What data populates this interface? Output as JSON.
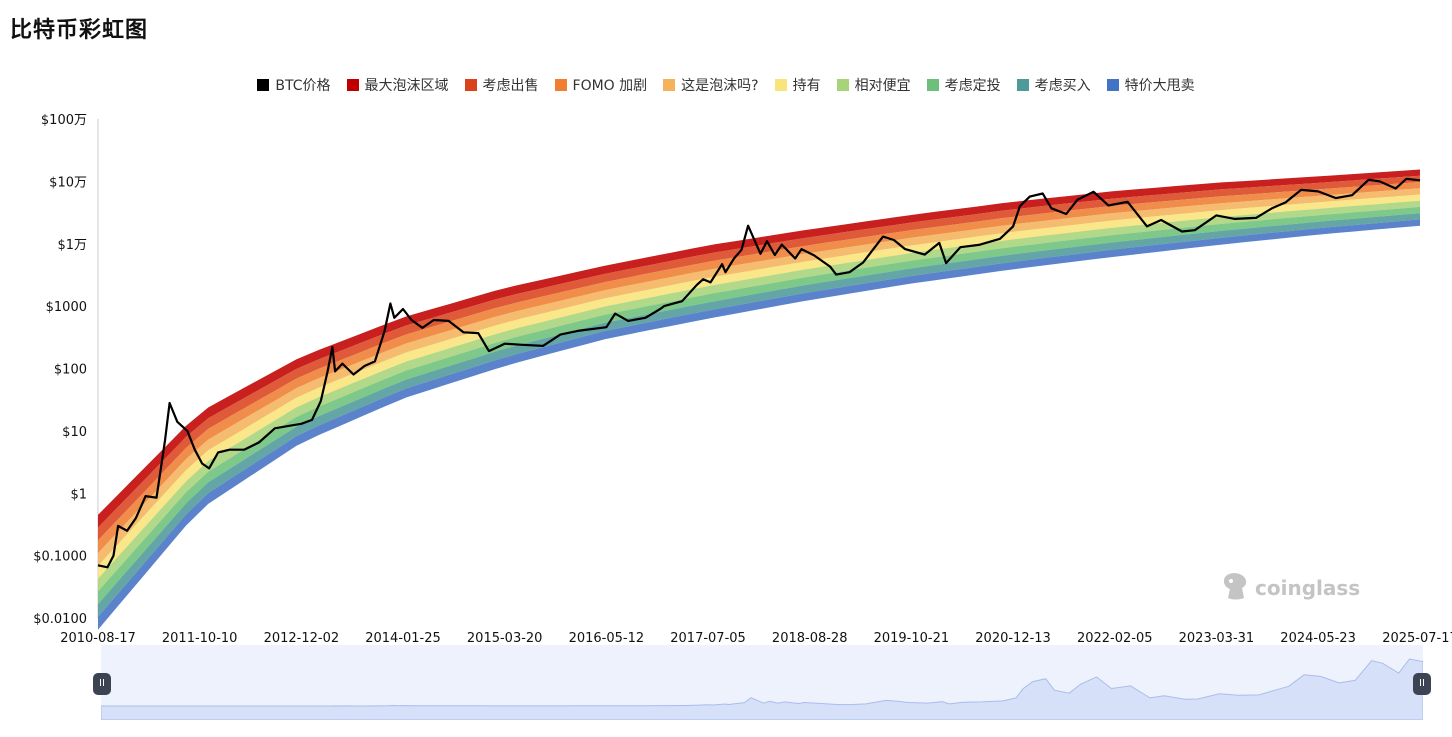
{
  "page": {
    "title": "比特币彩虹图"
  },
  "legend": [
    {
      "label": "BTC价格",
      "color": "#000000"
    },
    {
      "label": "最大泡沫区域",
      "color": "#c00000"
    },
    {
      "label": "考虑出售",
      "color": "#d9431c"
    },
    {
      "label": "FOMO 加剧",
      "color": "#ef7d32"
    },
    {
      "label": "这是泡沫吗?",
      "color": "#f4b25a"
    },
    {
      "label": "持有",
      "color": "#f8e47a"
    },
    {
      "label": "相对便宜",
      "color": "#a7d37a"
    },
    {
      "label": "考虑定投",
      "color": "#6cc07a"
    },
    {
      "label": "考虑买入",
      "color": "#4e9a9a"
    },
    {
      "label": "特价大甩卖",
      "color": "#4472c4"
    }
  ],
  "watermark": {
    "text": "coinglass"
  },
  "chart_data": {
    "type": "line",
    "title": "比特币彩虹图",
    "y_scale": "log",
    "ylim": [
      0.01,
      1000000
    ],
    "xlim": [
      "2010-08-17",
      "2025-07-17"
    ],
    "y_tick_labels": [
      "$100万",
      "$10万",
      "$1万",
      "$1000",
      "$100",
      "$10",
      "$1",
      "$0.1000",
      "$0.0100"
    ],
    "y_tick_values": [
      1000000,
      100000,
      10000,
      1000,
      100,
      10,
      1,
      0.1,
      0.01
    ],
    "x_tick_labels": [
      "2010-08-17",
      "2011-10-10",
      "2012-12-02",
      "2014-01-25",
      "2015-03-20",
      "2016-05-12",
      "2017-07-05",
      "2018-08-28",
      "2019-10-21",
      "2020-12-13",
      "2022-02-05",
      "2023-03-31",
      "2024-05-23",
      "2025-07-17"
    ],
    "band_lines": {
      "dates": [
        "2010-08-17",
        "2011-10-10",
        "2012-12-02",
        "2014-01-25",
        "2015-03-20",
        "2016-05-12",
        "2017-07-05",
        "2018-08-28",
        "2019-10-21",
        "2020-12-13",
        "2022-02-05",
        "2023-03-31",
        "2024-05-23",
        "2025-07-17"
      ],
      "top_values": [
        0.45,
        20,
        155,
        660,
        1950,
        4500,
        9400,
        17000,
        29000,
        47000,
        70000,
        95000,
        120000,
        155000
      ],
      "bottom_values": [
        0.0065,
        0.55,
        6.5,
        33,
        110,
        300,
        630,
        1250,
        2300,
        3900,
        6200,
        9500,
        14000,
        19500
      ]
    },
    "series": [
      {
        "name": "BTC价格",
        "color": "#000000",
        "x": [
          "2010-08-17",
          "2010-09-25",
          "2010-10-20",
          "2010-11-08",
          "2010-12-15",
          "2011-01-20",
          "2011-03-01",
          "2011-04-15",
          "2011-05-20",
          "2011-06-08",
          "2011-07-10",
          "2011-08-20",
          "2011-09-20",
          "2011-10-20",
          "2011-11-18",
          "2011-12-25",
          "2012-02-10",
          "2012-04-10",
          "2012-06-10",
          "2012-08-15",
          "2012-10-10",
          "2012-12-02",
          "2013-01-15",
          "2013-02-20",
          "2013-03-20",
          "2013-04-09",
          "2013-04-20",
          "2013-05-20",
          "2013-07-05",
          "2013-08-20",
          "2013-10-01",
          "2013-11-10",
          "2013-12-04",
          "2013-12-20",
          "2014-01-25",
          "2014-03-01",
          "2014-04-15",
          "2014-06-01",
          "2014-08-01",
          "2014-10-01",
          "2014-12-01",
          "2015-01-14",
          "2015-03-20",
          "2015-06-01",
          "2015-08-25",
          "2015-11-04",
          "2016-01-15",
          "2016-05-12",
          "2016-06-17",
          "2016-08-10",
          "2016-10-20",
          "2016-12-20",
          "2017-01-05",
          "2017-03-20",
          "2017-05-20",
          "2017-06-15",
          "2017-07-15",
          "2017-09-01",
          "2017-09-15",
          "2017-10-20",
          "2017-11-20",
          "2017-12-17",
          "2018-02-06",
          "2018-03-05",
          "2018-04-06",
          "2018-05-05",
          "2018-06-29",
          "2018-07-25",
          "2018-09-15",
          "2018-11-20",
          "2018-12-15",
          "2019-02-08",
          "2019-04-05",
          "2019-06-26",
          "2019-08-10",
          "2019-09-25",
          "2019-12-15",
          "2020-02-13",
          "2020-03-12",
          "2020-05-10",
          "2020-07-25",
          "2020-10-20",
          "2020-12-13",
          "2021-01-10",
          "2021-02-20",
          "2021-04-14",
          "2021-05-20",
          "2021-07-20",
          "2021-09-05",
          "2021-11-10",
          "2022-01-10",
          "2022-03-30",
          "2022-06-18",
          "2022-08-15",
          "2022-11-09",
          "2023-01-01",
          "2023-03-31",
          "2023-06-15",
          "2023-09-10",
          "2023-11-15",
          "2024-01-10",
          "2024-03-14",
          "2024-05-23",
          "2024-08-05",
          "2024-10-10",
          "2024-12-17",
          "2025-02-01",
          "2025-04-08",
          "2025-05-22",
          "2025-07-17"
        ],
        "values": [
          0.07,
          0.065,
          0.1,
          0.3,
          0.25,
          0.4,
          0.9,
          0.85,
          7,
          28,
          14,
          10,
          5,
          3,
          2.5,
          4.5,
          5,
          5,
          6.5,
          11,
          12,
          13,
          15,
          30,
          90,
          220,
          90,
          120,
          80,
          110,
          130,
          400,
          1100,
          650,
          900,
          600,
          450,
          600,
          580,
          380,
          370,
          190,
          250,
          240,
          230,
          350,
          400,
          460,
          760,
          580,
          650,
          900,
          1000,
          1200,
          2200,
          2700,
          2400,
          4700,
          3500,
          5800,
          8000,
          19500,
          6900,
          11000,
          6600,
          9700,
          5800,
          8200,
          6500,
          4300,
          3200,
          3500,
          5000,
          13000,
          11500,
          8200,
          6700,
          10300,
          4900,
          8800,
          9600,
          12000,
          19000,
          40000,
          57000,
          64000,
          37000,
          30000,
          51000,
          68000,
          41000,
          47000,
          19000,
          24000,
          15700,
          16500,
          28500,
          25000,
          26000,
          37000,
          46000,
          73000,
          69000,
          54000,
          60000,
          106000,
          100000,
          77000,
          110000,
          104000
        ]
      }
    ]
  },
  "navigator": {
    "left_handle_label": "II",
    "right_handle_label": "II"
  }
}
